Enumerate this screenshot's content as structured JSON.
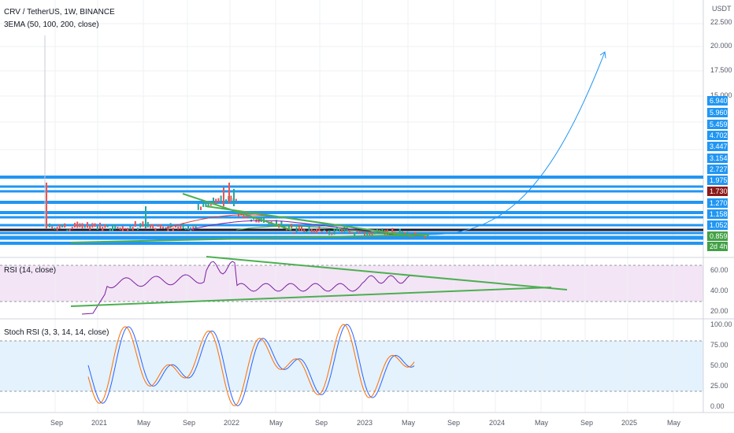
{
  "header": {
    "symbol_line": "CRV / TetherUS, 1W, BINANCE",
    "ema_label": "3EMA (50, 100, 200, close)",
    "currency": "USDT"
  },
  "price_axis": {
    "ticks": [
      "22.500",
      "20.000",
      "17.500",
      "15.000"
    ]
  },
  "price_tags": [
    {
      "label": "6.940",
      "color": "#2196f3"
    },
    {
      "label": "5.960",
      "color": "#2196f3"
    },
    {
      "label": "5.459",
      "color": "#2196f3"
    },
    {
      "label": "4.702",
      "color": "#2196f3"
    },
    {
      "label": "3.447",
      "color": "#2196f3"
    },
    {
      "label": "3.154",
      "color": "#2196f3"
    },
    {
      "label": "2.727",
      "color": "#2196f3"
    },
    {
      "label": "1.975",
      "color": "#2196f3"
    },
    {
      "label": "1.730",
      "color": "#8b1a1a"
    },
    {
      "label": "1.270",
      "color": "#2196f3"
    },
    {
      "label": "1.158",
      "color": "#2196f3"
    },
    {
      "label": "1.052",
      "color": "#2196f3"
    },
    {
      "label": "0.859",
      "color": "#43a047"
    },
    {
      "label": "2d 4h",
      "color": "#43a047"
    }
  ],
  "rsi_panel": {
    "label": "RSI (14, close)",
    "ticks": [
      "60.00",
      "40.00",
      "20.00"
    ]
  },
  "stoch_panel": {
    "label": "Stoch RSI (3, 3, 14, 14, close)",
    "ticks": [
      "100.00",
      "75.00",
      "50.00",
      "25.00",
      "0.00"
    ]
  },
  "time_axis": {
    "labels": [
      "Sep",
      "2021",
      "May",
      "Sep",
      "2022",
      "May",
      "Sep",
      "2023",
      "May",
      "Sep",
      "2024",
      "May",
      "Sep",
      "2025",
      "May"
    ]
  },
  "colors": {
    "support_line": "#2196f3",
    "trend_line": "#4caf50",
    "rsi_line": "#7b1fa2",
    "rsi_band": "#f3e5f5",
    "stoch_band": "#e3f2fd",
    "stoch_k": "#2962ff",
    "stoch_d": "#ff6d00",
    "projection_arrow": "#2196f3"
  }
}
